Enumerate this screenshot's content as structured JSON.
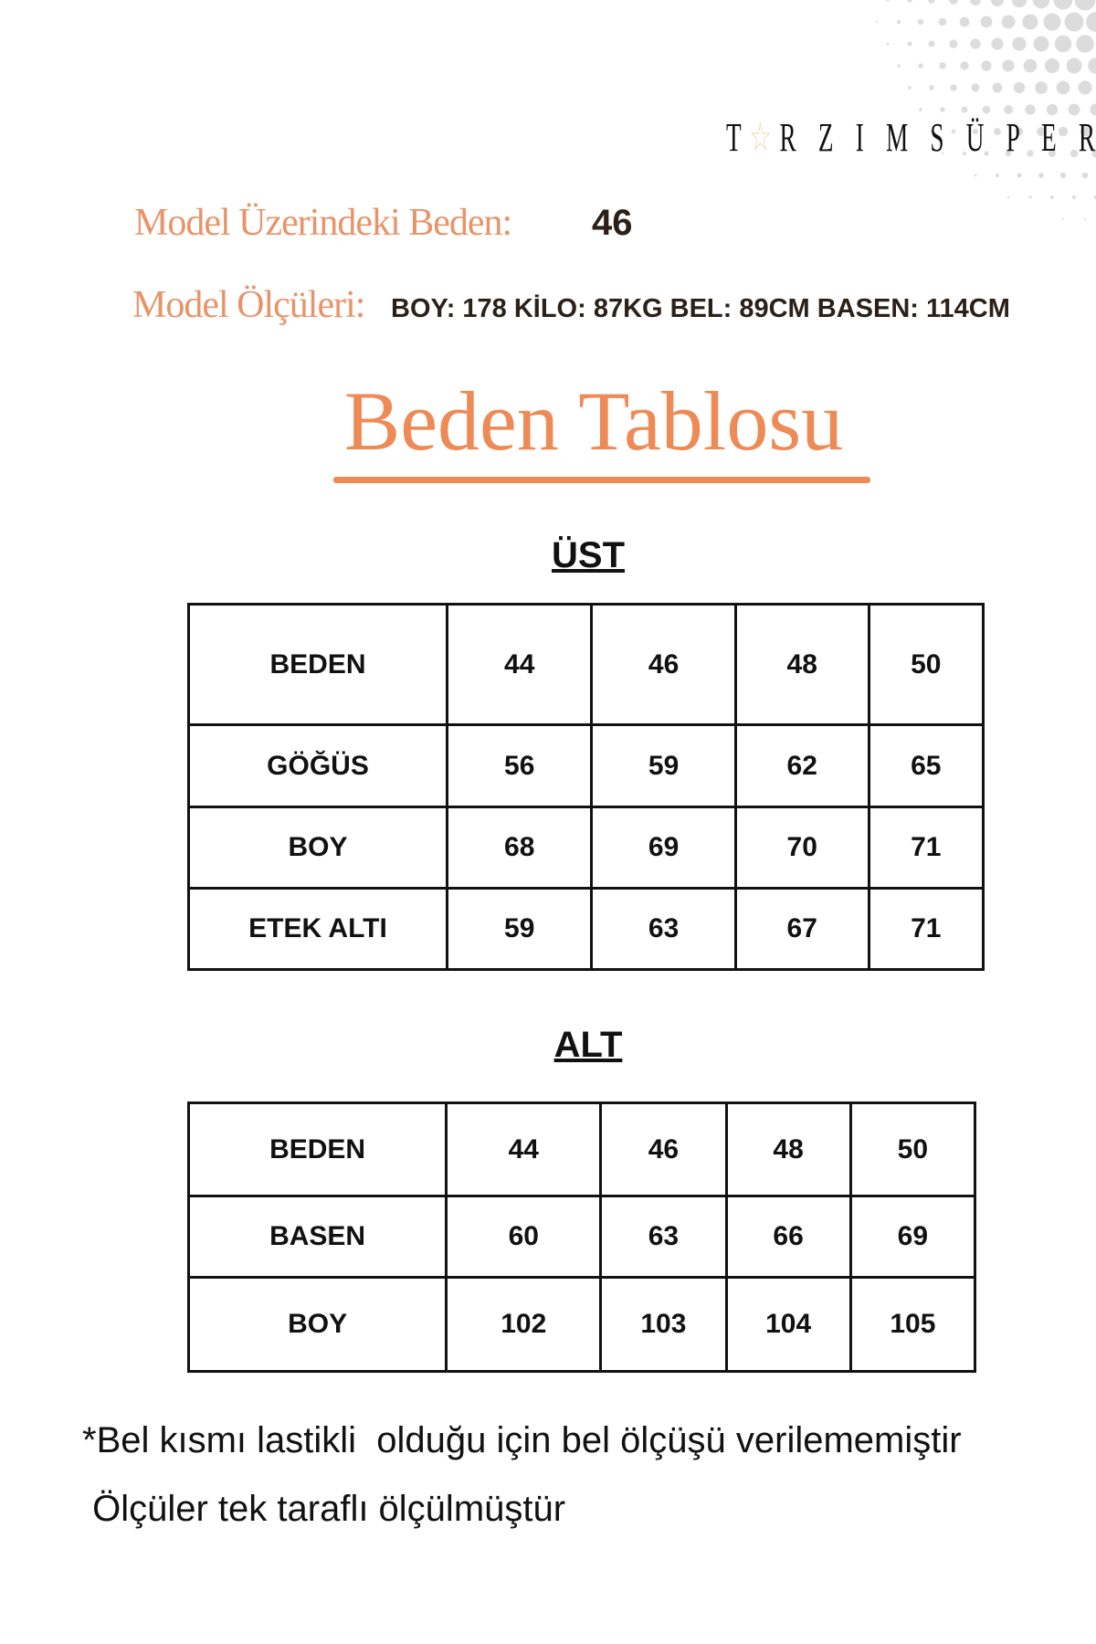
{
  "brand": {
    "logo_text": "TARZIMSÜPER",
    "logo_display": [
      "T",
      "R Z I M S Ü P E R"
    ]
  },
  "model": {
    "size_label": "Model Üzerindeki Beden:",
    "size_value": "46",
    "measurements_label": "Model Ölçüleri:",
    "measurements_value": "BOY: 178 KİLO: 87KG BEL: 89CM BASEN: 114CM"
  },
  "title": "Beden Tablosu",
  "colors": {
    "accent": "#ee8a55",
    "label": "#e8946a",
    "text": "#111111"
  },
  "ust": {
    "heading": "ÜST",
    "rows": [
      [
        "BEDEN",
        "44",
        "46",
        "48",
        "50"
      ],
      [
        "GÖĞÜS",
        "56",
        "59",
        "62",
        "65"
      ],
      [
        "BOY",
        "68",
        "69",
        "70",
        "71"
      ],
      [
        "ETEK ALTI",
        "59",
        "63",
        "67",
        "71"
      ]
    ]
  },
  "alt": {
    "heading": "ALT",
    "rows": [
      [
        "BEDEN",
        "44",
        "46",
        "48",
        "50"
      ],
      [
        "BASEN",
        "60",
        "63",
        "66",
        "69"
      ],
      [
        "BOY",
        "102",
        "103",
        "104",
        "105"
      ]
    ]
  },
  "notes": [
    "*Bel kısmı lastikli  olduğu için bel ölçüşü verilememiştir",
    " Ölçüler tek taraflı ölçülmüştür"
  ]
}
